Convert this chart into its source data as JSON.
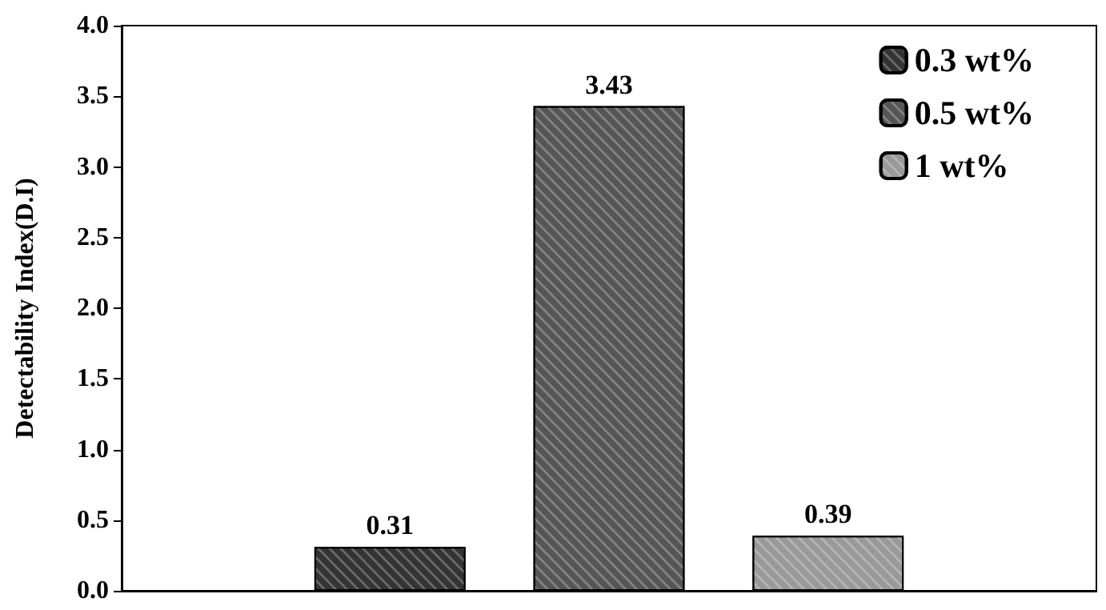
{
  "chart_data": {
    "type": "bar",
    "ylabel": "Detectability Index(D.I)",
    "categories": [
      null
    ],
    "series": [
      {
        "name": "0.3 wt%",
        "color": "#333333",
        "values": [
          0.31
        ]
      },
      {
        "name": "0.5 wt%",
        "color": "#555555",
        "values": [
          3.43
        ]
      },
      {
        "name": "1 wt%",
        "color": "#999999",
        "values": [
          0.39
        ]
      }
    ],
    "ylim": [
      0,
      4
    ],
    "yticks": [
      {
        "value": 0,
        "label": "0.0"
      },
      0.5,
      {
        "value": 1,
        "label": "1.0"
      },
      1.5,
      {
        "value": 2,
        "label": "2.0"
      },
      2.5,
      {
        "value": 3,
        "label": "3.0"
      },
      3.5,
      {
        "value": 4,
        "label": "4.0"
      }
    ],
    "data_labels": true,
    "legend": "top right",
    "grid": false
  }
}
